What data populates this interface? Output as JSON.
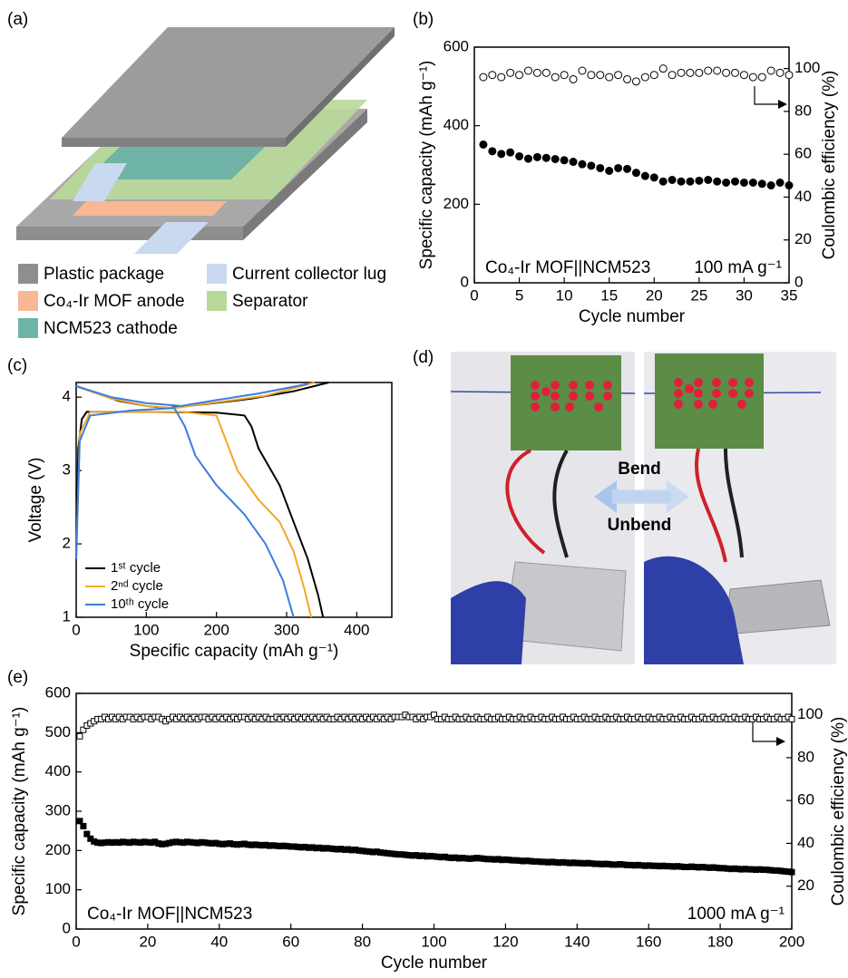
{
  "figure_a": {
    "panel": "(a)",
    "legend": [
      "Plastic package",
      "Current collector lug",
      "Co₄-Ir MOF anode",
      "Separator",
      "NCM523 cathode"
    ]
  },
  "figure_d": {
    "panel": "(d)",
    "arrows": [
      "Bend",
      "Unbend"
    ]
  },
  "chart_data": [
    {
      "type": "scatter",
      "panel": "(b)",
      "x_label": "Cycle number",
      "y_label": "Specific capacity (mAh g⁻¹)",
      "y2_label": "Coulombic efficiency (%)",
      "annotations": [
        "Co₄-Ir MOF||NCM523",
        "100 mA g⁻¹"
      ],
      "xlim": [
        0,
        35
      ],
      "xticks": [
        0,
        5,
        10,
        15,
        20,
        25,
        30,
        35
      ],
      "ylim": [
        0,
        600
      ],
      "yticks": [
        0,
        200,
        400,
        600
      ],
      "y2lim": [
        0,
        110
      ],
      "y2ticks": [
        0,
        20,
        40,
        60,
        80,
        100
      ],
      "x": [
        1,
        2,
        3,
        4,
        5,
        6,
        7,
        8,
        9,
        10,
        11,
        12,
        13,
        14,
        15,
        16,
        17,
        18,
        19,
        20,
        21,
        22,
        23,
        24,
        25,
        26,
        27,
        28,
        29,
        30,
        31,
        32,
        33,
        34,
        35
      ],
      "series": [
        {
          "color": "#000000",
          "marker": "circle",
          "filled": true,
          "values": [
            352,
            335,
            328,
            332,
            322,
            316,
            320,
            318,
            315,
            312,
            308,
            302,
            298,
            292,
            285,
            292,
            290,
            280,
            272,
            268,
            258,
            262,
            258,
            258,
            260,
            262,
            258,
            255,
            258,
            255,
            255,
            252,
            248,
            255,
            248
          ]
        },
        {
          "color": "#000000",
          "marker": "circle",
          "filled": false,
          "axis": "y2",
          "values": [
            96,
            97,
            96,
            98,
            97,
            99,
            98,
            98,
            96,
            97,
            95,
            99,
            97,
            97,
            96,
            97,
            95,
            94,
            96,
            97,
            100,
            97,
            98,
            98,
            98,
            99,
            99,
            98,
            98,
            97,
            96,
            96,
            99,
            98,
            97
          ]
        }
      ]
    },
    {
      "type": "line",
      "panel": "(c)",
      "x_label": "Specific capacity (mAh g⁻¹)",
      "y_label": "Voltage (V)",
      "legend": "lower left",
      "xlim": [
        0,
        450
      ],
      "xticks": [
        0,
        100,
        200,
        300,
        400
      ],
      "ylim": [
        1,
        4.2
      ],
      "yticks": [
        1,
        2,
        3,
        4
      ],
      "series": [
        {
          "name": "1ˢᵗ cycle",
          "color": "#000000",
          "x": [
            0,
            30,
            60,
            100,
            130,
            180,
            250,
            310,
            360,
            null,
            0,
            3,
            8,
            15,
            100,
            200,
            240,
            250,
            260,
            290,
            310,
            330,
            345,
            352
          ],
          "values": [
            4.15,
            4.05,
            3.95,
            3.88,
            3.85,
            3.9,
            3.98,
            4.08,
            4.2,
            null,
            1.8,
            3.3,
            3.7,
            3.8,
            3.8,
            3.79,
            3.75,
            3.6,
            3.3,
            2.8,
            2.3,
            1.8,
            1.3,
            1.0
          ]
        },
        {
          "name": "2ⁿᵈ cycle",
          "color": "#f5a623",
          "x": [
            0,
            50,
            100,
            140,
            200,
            270,
            340,
            null,
            0,
            5,
            20,
            150,
            200,
            210,
            230,
            260,
            290,
            310,
            325,
            335
          ],
          "values": [
            4.15,
            3.98,
            3.88,
            3.85,
            3.93,
            4.02,
            4.2,
            null,
            1.8,
            3.5,
            3.8,
            3.8,
            3.75,
            3.5,
            3.0,
            2.6,
            2.3,
            1.9,
            1.4,
            1.0
          ]
        },
        {
          "name": "10ᵗʰ cycle",
          "color": "#3b7de0",
          "x": [
            0,
            50,
            100,
            150,
            200,
            260,
            330,
            null,
            0,
            5,
            20,
            80,
            140,
            155,
            170,
            200,
            240,
            270,
            295,
            310
          ],
          "values": [
            4.15,
            4.0,
            3.92,
            3.88,
            3.96,
            4.05,
            4.18,
            null,
            1.8,
            3.4,
            3.75,
            3.82,
            3.85,
            3.6,
            3.2,
            2.8,
            2.4,
            2.0,
            1.5,
            1.0
          ]
        }
      ]
    },
    {
      "type": "scatter",
      "panel": "(e)",
      "x_label": "Cycle number",
      "y_label": "Specific capacity (mAh g⁻¹)",
      "y2_label": "Coulombic efficiency (%)",
      "annotations": [
        "Co₄-Ir MOF||NCM523",
        "1000 mA g⁻¹"
      ],
      "xlim": [
        0,
        200
      ],
      "xticks": [
        0,
        20,
        40,
        60,
        80,
        100,
        120,
        140,
        160,
        180,
        200
      ],
      "ylim": [
        0,
        600
      ],
      "yticks": [
        0,
        100,
        200,
        300,
        400,
        500,
        600
      ],
      "y2lim": [
        0,
        110
      ],
      "y2ticks": [
        20,
        40,
        60,
        80,
        100
      ],
      "x": [
        1,
        2,
        3,
        4,
        5,
        6,
        7,
        8,
        9,
        10,
        11,
        12,
        13,
        14,
        15,
        16,
        17,
        18,
        19,
        20,
        21,
        22,
        23,
        24,
        25,
        26,
        27,
        28,
        29,
        30,
        31,
        32,
        33,
        34,
        35,
        36,
        37,
        38,
        39,
        40,
        41,
        42,
        43,
        44,
        45,
        46,
        47,
        48,
        49,
        50,
        51,
        52,
        53,
        54,
        55,
        56,
        57,
        58,
        59,
        60,
        61,
        62,
        63,
        64,
        65,
        66,
        67,
        68,
        69,
        70,
        71,
        72,
        73,
        74,
        75,
        76,
        77,
        78,
        79,
        80,
        81,
        82,
        83,
        84,
        85,
        86,
        87,
        88,
        89,
        90,
        91,
        92,
        93,
        94,
        95,
        96,
        97,
        98,
        99,
        100,
        101,
        102,
        103,
        104,
        105,
        106,
        107,
        108,
        109,
        110,
        111,
        112,
        113,
        114,
        115,
        116,
        117,
        118,
        119,
        120,
        121,
        122,
        123,
        124,
        125,
        126,
        127,
        128,
        129,
        130,
        131,
        132,
        133,
        134,
        135,
        136,
        137,
        138,
        139,
        140,
        141,
        142,
        143,
        144,
        145,
        146,
        147,
        148,
        149,
        150,
        151,
        152,
        153,
        154,
        155,
        156,
        157,
        158,
        159,
        160,
        161,
        162,
        163,
        164,
        165,
        166,
        167,
        168,
        169,
        170,
        171,
        172,
        173,
        174,
        175,
        176,
        177,
        178,
        179,
        180,
        181,
        182,
        183,
        184,
        185,
        186,
        187,
        188,
        189,
        190,
        191,
        192,
        193,
        194,
        195,
        196,
        197,
        198,
        199,
        200
      ],
      "series": [
        {
          "color": "#000000",
          "marker": "square",
          "filled": true,
          "values": [
            275,
            262,
            242,
            230,
            223,
            220,
            219,
            220,
            221,
            220,
            221,
            220,
            222,
            221,
            220,
            222,
            221,
            220,
            222,
            221,
            220,
            222,
            218,
            216,
            217,
            219,
            221,
            222,
            221,
            220,
            222,
            221,
            220,
            219,
            221,
            220,
            219,
            218,
            219,
            217,
            216,
            217,
            218,
            216,
            215,
            216,
            217,
            215,
            214,
            215,
            214,
            213,
            214,
            212,
            213,
            212,
            211,
            212,
            211,
            210,
            210,
            209,
            208,
            209,
            207,
            208,
            206,
            207,
            205,
            206,
            205,
            204,
            203,
            204,
            202,
            203,
            201,
            202,
            200,
            199,
            198,
            197,
            196,
            197,
            195,
            194,
            193,
            192,
            191,
            190,
            190,
            189,
            188,
            187,
            188,
            186,
            187,
            185,
            186,
            185,
            184,
            183,
            184,
            182,
            181,
            182,
            180,
            181,
            180,
            179,
            180,
            181,
            180,
            179,
            178,
            178,
            177,
            178,
            176,
            177,
            176,
            175,
            175,
            174,
            173,
            174,
            173,
            172,
            172,
            171,
            171,
            170,
            171,
            170,
            169,
            170,
            169,
            168,
            169,
            168,
            168,
            167,
            168,
            167,
            166,
            166,
            165,
            166,
            165,
            164,
            164,
            165,
            164,
            163,
            163,
            162,
            163,
            162,
            161,
            162,
            161,
            161,
            160,
            161,
            160,
            160,
            159,
            160,
            159,
            158,
            158,
            159,
            158,
            157,
            158,
            157,
            156,
            157,
            156,
            155,
            155,
            154,
            153,
            154,
            153,
            152,
            153,
            152,
            152,
            151,
            152,
            151,
            151,
            150,
            149,
            149,
            148,
            147,
            146,
            145
          ]
        },
        {
          "color": "#000000",
          "marker": "square",
          "filled": false,
          "axis": "y2",
          "values": [
            90,
            93,
            95,
            96,
            97,
            98,
            98,
            99,
            98,
            99,
            98,
            99,
            98,
            99,
            99,
            98,
            99,
            98,
            99,
            99,
            98,
            99,
            99,
            98,
            97,
            98,
            99,
            98,
            99,
            98,
            99,
            98,
            99,
            98,
            99,
            99,
            98,
            99,
            98,
            99,
            98,
            99,
            98,
            99,
            98,
            99,
            99,
            98,
            99,
            98,
            99,
            98,
            99,
            98,
            98,
            99,
            98,
            99,
            98,
            99,
            98,
            99,
            98,
            99,
            98,
            99,
            98,
            99,
            98,
            99,
            98,
            98,
            99,
            98,
            99,
            98,
            99,
            98,
            99,
            98,
            99,
            98,
            99,
            98,
            99,
            98,
            99,
            98,
            99,
            99,
            99,
            100,
            99,
            99,
            98,
            99,
            98,
            99,
            99,
            100,
            98,
            98,
            99,
            98,
            98,
            99,
            98,
            98,
            99,
            98,
            98,
            99,
            98,
            98,
            99,
            98,
            98,
            99,
            98,
            98,
            99,
            98,
            98,
            99,
            98,
            98,
            99,
            98,
            98,
            99,
            98,
            98,
            99,
            98,
            98,
            99,
            98,
            98,
            99,
            98,
            98,
            99,
            98,
            98,
            99,
            98,
            98,
            99,
            98,
            98,
            99,
            98,
            98,
            99,
            98,
            98,
            99,
            98,
            98,
            99,
            98,
            98,
            99,
            98,
            98,
            99,
            98,
            98,
            99,
            98,
            98,
            99,
            98,
            98,
            99,
            98,
            98,
            99,
            98,
            98,
            99,
            98,
            98,
            99,
            98,
            98,
            99,
            98,
            98,
            99,
            98,
            98,
            99,
            98,
            98,
            99,
            98,
            98,
            99,
            98
          ]
        }
      ]
    }
  ]
}
